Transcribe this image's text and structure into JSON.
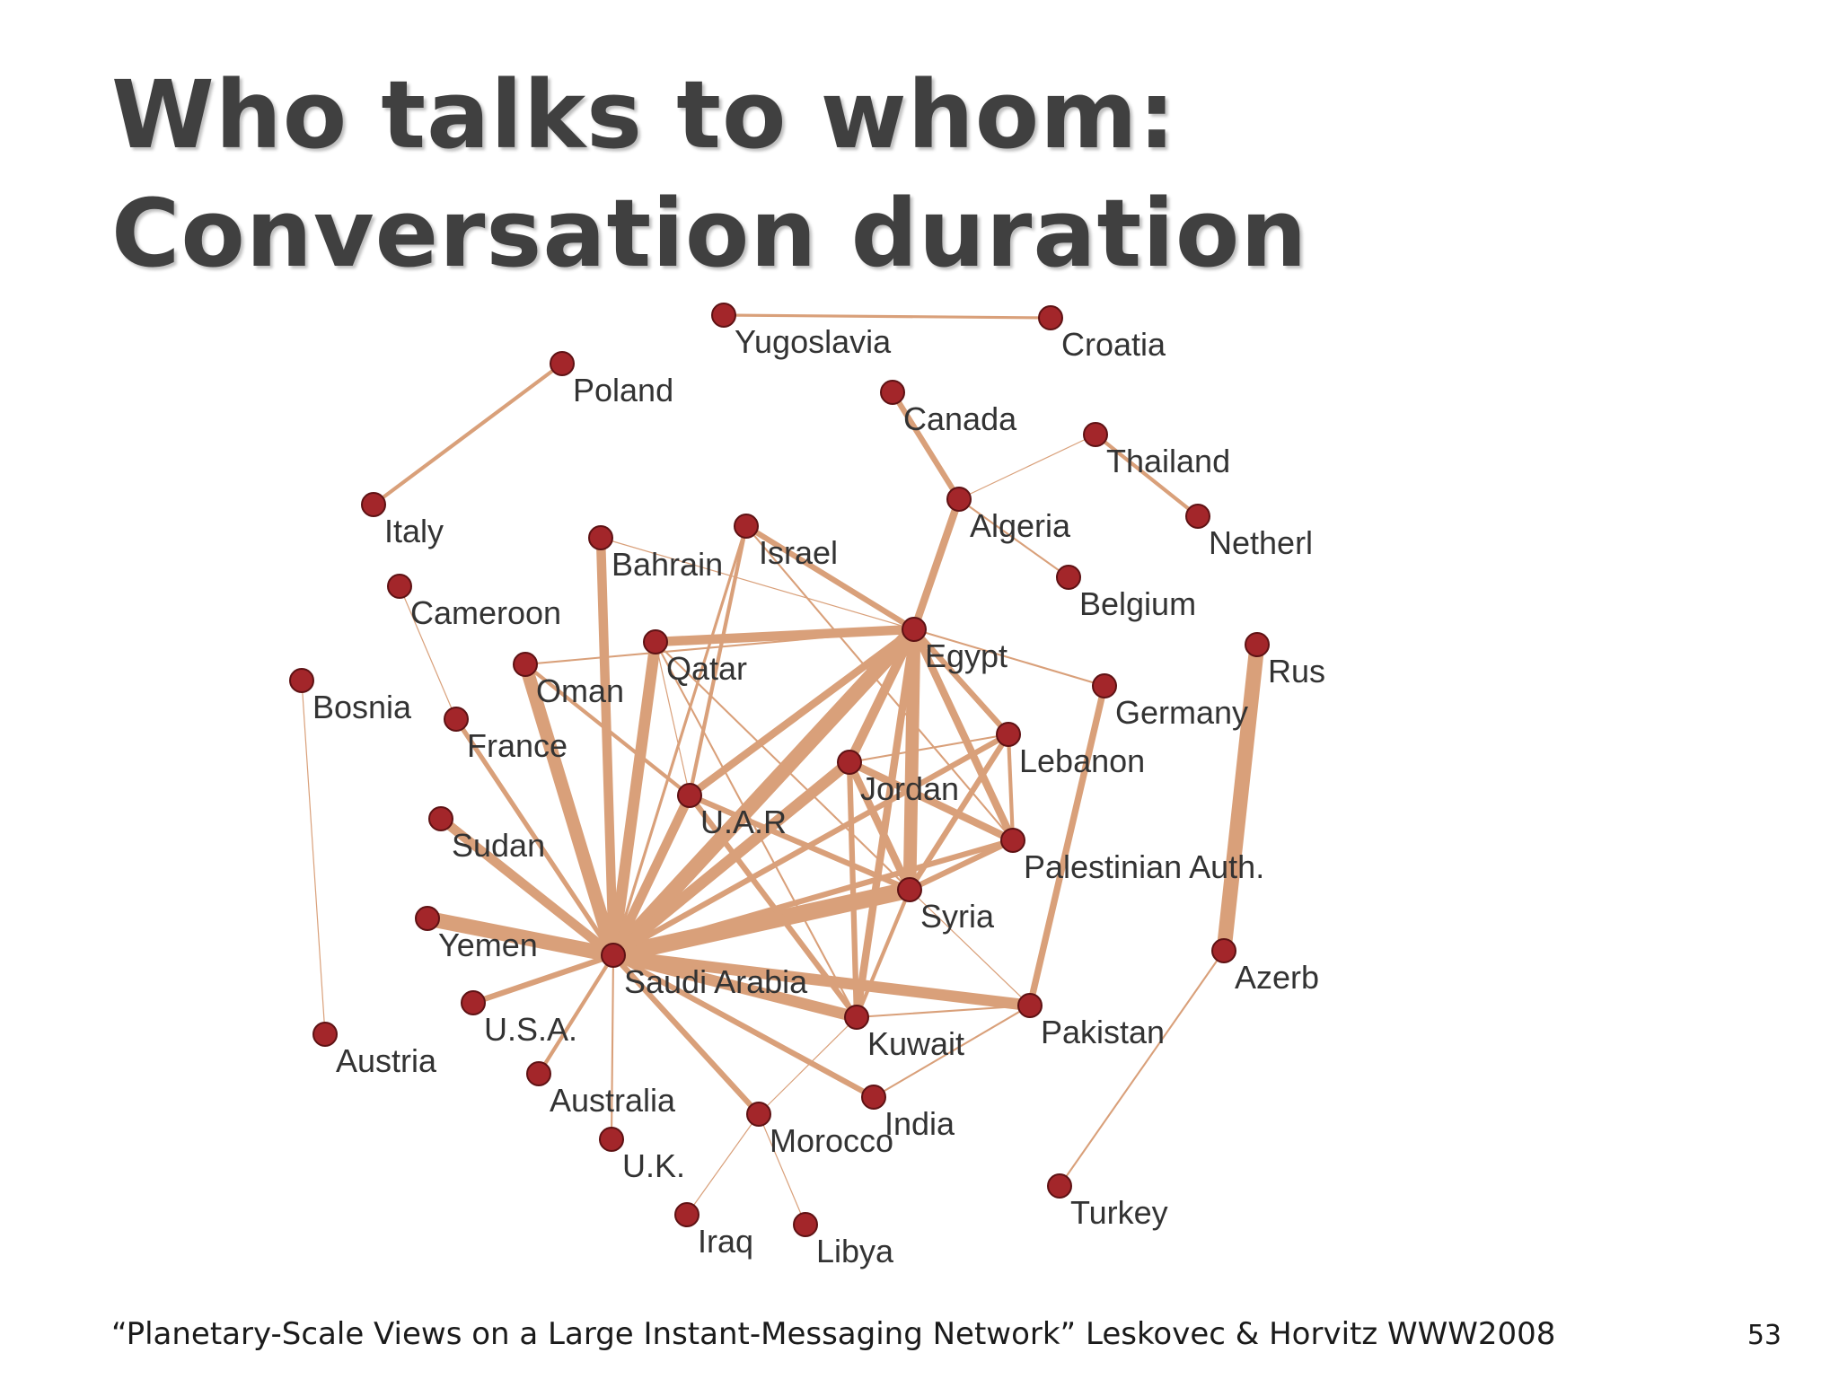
{
  "slide": {
    "title_line1": "Who talks to whom:",
    "title_line2": "Conversation duration",
    "citation": "“Planetary-Scale Views on a Large Instant-Messaging Network” Leskovec & Horvitz WWW2008",
    "page_number": "53"
  },
  "colors": {
    "edge": "#D9A07A",
    "node_fill": "#A3262A",
    "node_stroke": "#5E1214",
    "title": "#404040"
  },
  "network": {
    "nodes": [
      {
        "id": "yugoslavia",
        "label": "Yugoslavia"
      },
      {
        "id": "croatia",
        "label": "Croatia"
      },
      {
        "id": "poland",
        "label": "Poland"
      },
      {
        "id": "canada",
        "label": "Canada"
      },
      {
        "id": "thailand",
        "label": "Thailand"
      },
      {
        "id": "italy",
        "label": "Italy"
      },
      {
        "id": "algeria",
        "label": "Algeria"
      },
      {
        "id": "netherlands",
        "label": "Netherl"
      },
      {
        "id": "bahrain",
        "label": "Bahrain"
      },
      {
        "id": "israel",
        "label": "Israel"
      },
      {
        "id": "belgium",
        "label": "Belgium"
      },
      {
        "id": "cameroon",
        "label": "Cameroon"
      },
      {
        "id": "egypt",
        "label": "Egypt"
      },
      {
        "id": "qatar",
        "label": "Qatar"
      },
      {
        "id": "oman",
        "label": "Oman"
      },
      {
        "id": "russia",
        "label": "Rus"
      },
      {
        "id": "bosnia",
        "label": "Bosnia"
      },
      {
        "id": "germany",
        "label": "Germany"
      },
      {
        "id": "france",
        "label": "France"
      },
      {
        "id": "lebanon",
        "label": "Lebanon"
      },
      {
        "id": "jordan",
        "label": "Jordan"
      },
      {
        "id": "uar",
        "label": "U.A.R"
      },
      {
        "id": "sudan",
        "label": "Sudan"
      },
      {
        "id": "palestinian",
        "label": "Palestinian Auth."
      },
      {
        "id": "syria",
        "label": "Syria"
      },
      {
        "id": "yemen",
        "label": "Yemen"
      },
      {
        "id": "saudi",
        "label": "Saudi Arabia"
      },
      {
        "id": "azerbaijan",
        "label": "Azerb"
      },
      {
        "id": "pakistan",
        "label": "Pakistan"
      },
      {
        "id": "usa",
        "label": "U.S.A."
      },
      {
        "id": "kuwait",
        "label": "Kuwait"
      },
      {
        "id": "austria",
        "label": "Austria"
      },
      {
        "id": "australia",
        "label": "Australia"
      },
      {
        "id": "india",
        "label": "India"
      },
      {
        "id": "morocco",
        "label": "Morocco"
      },
      {
        "id": "uk",
        "label": "U.K."
      },
      {
        "id": "turkey",
        "label": "Turkey"
      },
      {
        "id": "iraq",
        "label": "Iraq"
      },
      {
        "id": "libya",
        "label": "Libya"
      }
    ],
    "edges": [
      {
        "source": "yugoslavia",
        "target": "croatia",
        "weight": 3
      },
      {
        "source": "poland",
        "target": "italy",
        "weight": 4
      },
      {
        "source": "canada",
        "target": "algeria",
        "weight": 6
      },
      {
        "source": "thailand",
        "target": "netherlands",
        "weight": 4
      },
      {
        "source": "thailand",
        "target": "algeria",
        "weight": 1
      },
      {
        "source": "algeria",
        "target": "belgium",
        "weight": 2
      },
      {
        "source": "algeria",
        "target": "egypt",
        "weight": 8
      },
      {
        "source": "cameroon",
        "target": "france",
        "weight": 1
      },
      {
        "source": "bosnia",
        "target": "austria",
        "weight": 1
      },
      {
        "source": "russia",
        "target": "azerbaijan",
        "weight": 16
      },
      {
        "source": "azerbaijan",
        "target": "turkey",
        "weight": 2
      },
      {
        "source": "germany",
        "target": "pakistan",
        "weight": 7
      },
      {
        "source": "egypt",
        "target": "germany",
        "weight": 2
      },
      {
        "source": "bahrain",
        "target": "saudi",
        "weight": 10
      },
      {
        "source": "bahrain",
        "target": "egypt",
        "weight": 1
      },
      {
        "source": "oman",
        "target": "saudi",
        "weight": 14
      },
      {
        "source": "qatar",
        "target": "saudi",
        "weight": 12
      },
      {
        "source": "qatar",
        "target": "egypt",
        "weight": 10
      },
      {
        "source": "qatar",
        "target": "kuwait",
        "weight": 2
      },
      {
        "source": "qatar",
        "target": "syria",
        "weight": 2
      },
      {
        "source": "israel",
        "target": "egypt",
        "weight": 6
      },
      {
        "source": "israel",
        "target": "uar",
        "weight": 4
      },
      {
        "source": "israel",
        "target": "saudi",
        "weight": 3
      },
      {
        "source": "israel",
        "target": "palestinian",
        "weight": 2
      },
      {
        "source": "france",
        "target": "saudi",
        "weight": 5
      },
      {
        "source": "sudan",
        "target": "saudi",
        "weight": 10
      },
      {
        "source": "yemen",
        "target": "saudi",
        "weight": 16
      },
      {
        "source": "usa",
        "target": "saudi",
        "weight": 6
      },
      {
        "source": "australia",
        "target": "saudi",
        "weight": 4
      },
      {
        "source": "uk",
        "target": "saudi",
        "weight": 2
      },
      {
        "source": "saudi",
        "target": "egypt",
        "weight": 16
      },
      {
        "source": "saudi",
        "target": "syria",
        "weight": 18
      },
      {
        "source": "saudi",
        "target": "jordan",
        "weight": 12
      },
      {
        "source": "saudi",
        "target": "uar",
        "weight": 10
      },
      {
        "source": "saudi",
        "target": "lebanon",
        "weight": 6
      },
      {
        "source": "saudi",
        "target": "palestinian",
        "weight": 6
      },
      {
        "source": "saudi",
        "target": "kuwait",
        "weight": 12
      },
      {
        "source": "saudi",
        "target": "pakistan",
        "weight": 12
      },
      {
        "source": "saudi",
        "target": "india",
        "weight": 6
      },
      {
        "source": "saudi",
        "target": "morocco",
        "weight": 6
      },
      {
        "source": "egypt",
        "target": "syria",
        "weight": 14
      },
      {
        "source": "egypt",
        "target": "jordan",
        "weight": 10
      },
      {
        "source": "egypt",
        "target": "uar",
        "weight": 8
      },
      {
        "source": "egypt",
        "target": "kuwait",
        "weight": 8
      },
      {
        "source": "egypt",
        "target": "palestinian",
        "weight": 8
      },
      {
        "source": "egypt",
        "target": "lebanon",
        "weight": 6
      },
      {
        "source": "egypt",
        "target": "oman",
        "weight": 2
      },
      {
        "source": "jordan",
        "target": "syria",
        "weight": 8
      },
      {
        "source": "jordan",
        "target": "palestinian",
        "weight": 8
      },
      {
        "source": "jordan",
        "target": "kuwait",
        "weight": 6
      },
      {
        "source": "jordan",
        "target": "lebanon",
        "weight": 2
      },
      {
        "source": "uar",
        "target": "syria",
        "weight": 6
      },
      {
        "source": "uar",
        "target": "kuwait",
        "weight": 6
      },
      {
        "source": "uar",
        "target": "qatar",
        "weight": 1
      },
      {
        "source": "oman",
        "target": "uar",
        "weight": 4
      },
      {
        "source": "lebanon",
        "target": "syria",
        "weight": 6
      },
      {
        "source": "lebanon",
        "target": "palestinian",
        "weight": 4
      },
      {
        "source": "syria",
        "target": "palestinian",
        "weight": 6
      },
      {
        "source": "syria",
        "target": "kuwait",
        "weight": 4
      },
      {
        "source": "kuwait",
        "target": "pakistan",
        "weight": 2
      },
      {
        "source": "kuwait",
        "target": "morocco",
        "weight": 1
      },
      {
        "source": "pakistan",
        "target": "india",
        "weight": 2
      },
      {
        "source": "syria",
        "target": "pakistan",
        "weight": 1
      },
      {
        "source": "morocco",
        "target": "iraq",
        "weight": 1
      },
      {
        "source": "morocco",
        "target": "libya",
        "weight": 1
      }
    ]
  }
}
